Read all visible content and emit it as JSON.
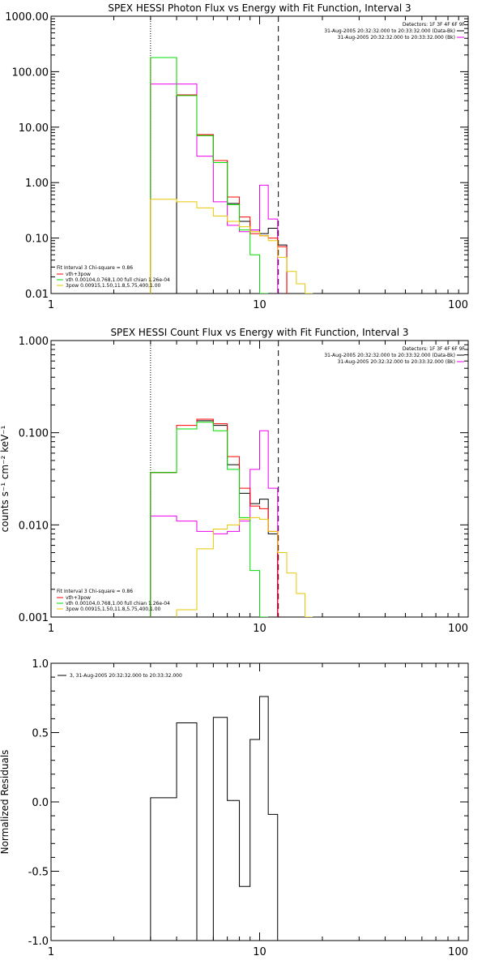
{
  "colors": {
    "red": "#ff0000",
    "green": "#00dd00",
    "magenta": "#ee00ee",
    "yellow": "#e8c800",
    "black": "#000000"
  },
  "chart_data": [
    {
      "type": "line",
      "title": "SPEX HESSI Photon Flux vs Energy with Fit Function, Interval 3",
      "ylabel": "",
      "xscale": "log",
      "yscale": "log",
      "xlim": [
        1,
        100
      ],
      "ylim": [
        0.01,
        1000
      ],
      "xticks": [
        {
          "v": 1,
          "label": "1"
        },
        {
          "v": 10,
          "label": "10"
        },
        {
          "v": 100,
          "label": "100"
        }
      ],
      "yticks": [
        {
          "v": 0.01,
          "label": "0.01"
        },
        {
          "v": 0.1,
          "label": "0.10"
        },
        {
          "v": 1,
          "label": "1.00"
        },
        {
          "v": 10,
          "label": "10.00"
        },
        {
          "v": 100,
          "label": "100.00"
        },
        {
          "v": 1000,
          "label": "1000.00"
        }
      ],
      "vlines": [
        {
          "x": 3.0,
          "style": "dotted"
        },
        {
          "x": 12.3,
          "style": "dashed"
        }
      ],
      "legend_top_right": [
        "Detectors: 1F 3F 4F 6F 9F",
        "31-Aug-2005 20:32:32.000 to 20:33:32.000 (Data-Bk)",
        "31-Aug-2005 20:32:32.000 to 20:33:32.000 (Bk)"
      ],
      "legend_bottom_left": {
        "header": "Fit Interval 3   Chi-square = 0.86",
        "items": [
          "vth+3pow",
          "vth 0.00104,0.768,1.00  full chian 1.26e-04",
          "3pow 0.00915,1.50,11.8,5.75,400,1.00"
        ]
      },
      "bin_edges": [
        3,
        4,
        5,
        6,
        7,
        8,
        9,
        10,
        11,
        12.2,
        13.5,
        15,
        16.5,
        18
      ],
      "series": [
        {
          "name": "black",
          "color": "black",
          "values": [
            null,
            38,
            7.3,
            2.5,
            0.42,
            0.2,
            0.14,
            0.12,
            0.15,
            0.075,
            null,
            null,
            null
          ]
        },
        {
          "name": "magenta",
          "color": "magenta",
          "values": [
            60,
            60,
            3.0,
            0.45,
            0.17,
            0.13,
            0.14,
            0.9,
            0.22,
            null,
            null,
            null,
            null
          ]
        },
        {
          "name": "vth+3pow",
          "color": "red",
          "values": [
            180,
            38,
            7.3,
            2.5,
            0.55,
            0.24,
            0.12,
            0.11,
            0.1,
            0.07,
            null,
            null,
            null
          ]
        },
        {
          "name": "vth 0.00104,0.768,1.00  full chian 1.26e-04",
          "color": "green",
          "values": [
            180,
            37,
            7.0,
            2.3,
            0.4,
            0.14,
            0.05,
            0.009,
            null,
            null,
            null,
            null,
            null
          ]
        },
        {
          "name": "3pow 0.00915,1.50,11.8,5.75,400,1.00",
          "color": "yellow",
          "values": [
            0.5,
            0.45,
            0.35,
            0.25,
            0.2,
            0.16,
            0.13,
            0.11,
            0.09,
            0.045,
            0.025,
            0.015,
            0.008
          ]
        }
      ]
    },
    {
      "type": "line",
      "title": "SPEX HESSI Count Flux vs Energy with Fit Function, Interval 3",
      "ylabel": "counts s⁻¹ cm⁻² keV⁻¹",
      "xscale": "log",
      "yscale": "log",
      "xlim": [
        1,
        100
      ],
      "ylim": [
        0.001,
        1
      ],
      "xticks": [
        {
          "v": 1,
          "label": "1"
        },
        {
          "v": 10,
          "label": "10"
        },
        {
          "v": 100,
          "label": "100"
        }
      ],
      "yticks": [
        {
          "v": 0.001,
          "label": "0.001"
        },
        {
          "v": 0.01,
          "label": "0.010"
        },
        {
          "v": 0.1,
          "label": "0.100"
        },
        {
          "v": 1,
          "label": "1.000"
        }
      ],
      "vlines": [
        {
          "x": 3.0,
          "style": "dotted"
        },
        {
          "x": 12.3,
          "style": "dashed"
        }
      ],
      "legend_top_right": [
        "Detectors: 1F 3F 4F 6F 9F",
        "31-Aug-2005 20:32:32.000 to 20:33:32.000 (Data-Bk)",
        "31-Aug-2005 20:32:32.000 to 20:33:32.000 (Bk)"
      ],
      "legend_bottom_left": {
        "header": "Fit Interval 3   Chi-square = 0.86",
        "items": [
          "vth+3pow",
          "vth 0.00104,0.768,1.00  full chian 1.26e-04",
          "3pow 0.00915,1.50,11.8,5.75,400,1.00"
        ]
      },
      "bin_edges": [
        3,
        4,
        5,
        6,
        7,
        8,
        9,
        10,
        11,
        12.2,
        13.5,
        15,
        16.5,
        18
      ],
      "series": [
        {
          "name": "black",
          "color": "black",
          "values": [
            0.037,
            0.11,
            0.135,
            0.12,
            0.045,
            0.022,
            0.017,
            0.019,
            0.008,
            null,
            null,
            null,
            null
          ]
        },
        {
          "name": "magenta",
          "color": "magenta",
          "values": [
            0.0125,
            0.011,
            0.0085,
            0.008,
            0.0085,
            0.011,
            0.04,
            0.105,
            0.025,
            null,
            null,
            null,
            null
          ]
        },
        {
          "name": "vth+3pow",
          "color": "red",
          "values": [
            0.037,
            0.12,
            0.14,
            0.125,
            0.055,
            0.025,
            0.016,
            0.015,
            0.0085,
            null,
            null,
            null,
            null
          ]
        },
        {
          "name": "vth 0.00104,0.768,1.00  full chian 1.26e-04",
          "color": "green",
          "values": [
            0.037,
            0.11,
            0.13,
            0.105,
            0.04,
            0.012,
            0.0032,
            0.0009,
            null,
            null,
            null,
            null,
            null
          ]
        },
        {
          "name": "3pow 0.00915,1.50,11.8,5.75,400,1.00",
          "color": "yellow",
          "values": [
            null,
            0.0012,
            0.0055,
            0.009,
            0.01,
            0.0115,
            0.012,
            0.0115,
            0.0085,
            0.005,
            0.003,
            0.0018,
            0.001
          ]
        }
      ]
    },
    {
      "type": "line",
      "title": "",
      "ylabel": "Normalized Residuals",
      "xscale": "log",
      "yscale": "linear",
      "xlim": [
        1,
        100
      ],
      "ylim": [
        -1,
        1
      ],
      "xticks": [
        {
          "v": 1,
          "label": "1"
        },
        {
          "v": 10,
          "label": "10"
        },
        {
          "v": 100,
          "label": "100"
        }
      ],
      "yticks": [
        {
          "v": -1,
          "label": "-1.0"
        },
        {
          "v": -0.5,
          "label": "-0.5"
        },
        {
          "v": 0,
          "label": "0.0"
        },
        {
          "v": 0.5,
          "label": "0.5"
        },
        {
          "v": 1,
          "label": "1.0"
        }
      ],
      "legend_top_left": "3, 31-Aug-2005 20:32:32.000 to 20:33:32.000",
      "bin_edges": [
        3,
        4,
        5,
        6,
        7,
        8,
        9,
        10,
        11,
        12.2
      ],
      "series": [
        {
          "name": "3, 31-Aug-2005 20:32:32.000 to 20:33:32.000",
          "color": "black",
          "values": [
            0.03,
            0.57,
            -1.02,
            0.61,
            0.01,
            -0.61,
            0.45,
            0.76,
            -0.09
          ]
        }
      ]
    }
  ]
}
